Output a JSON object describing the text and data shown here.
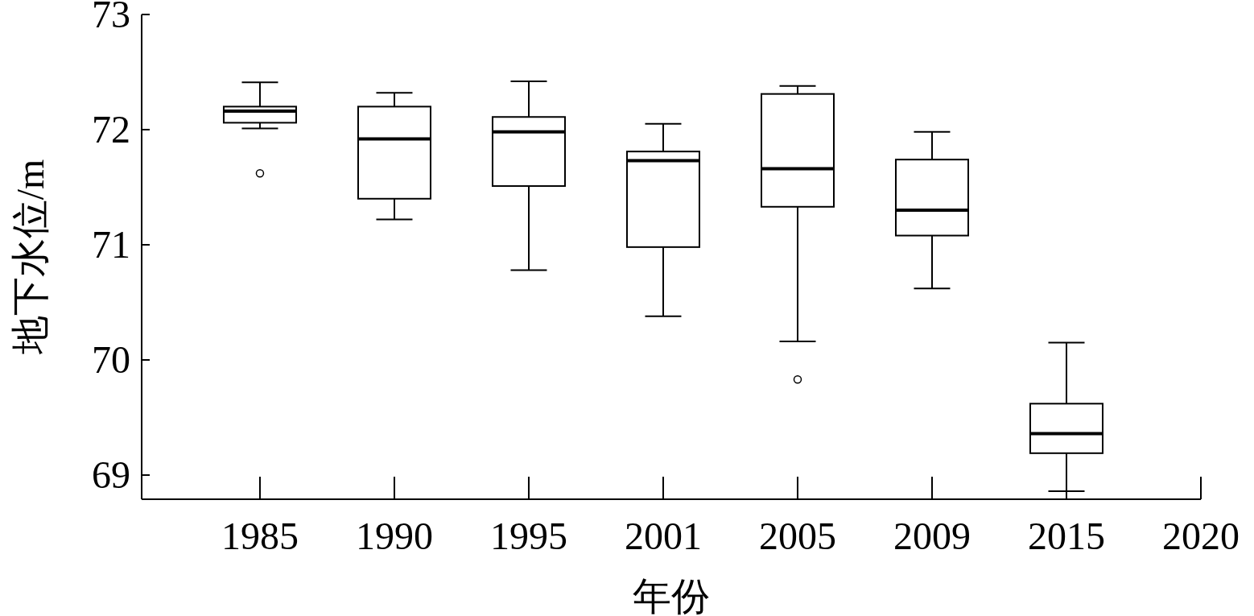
{
  "chart_data": {
    "type": "box",
    "xlabel": "年份",
    "ylabel": "地下水位/m",
    "categories": [
      "1985",
      "1990",
      "1995",
      "2001",
      "2005",
      "2009",
      "2015",
      "2020"
    ],
    "boxes": [
      {
        "low": 72.01,
        "q1": 72.06,
        "median": 72.16,
        "q3": 72.2,
        "high": 72.41,
        "outliers": [
          71.62
        ]
      },
      {
        "low": 71.22,
        "q1": 71.4,
        "median": 71.92,
        "q3": 72.2,
        "high": 72.32
      },
      {
        "low": 70.78,
        "q1": 71.51,
        "median": 71.98,
        "q3": 72.11,
        "high": 72.42
      },
      {
        "low": 70.38,
        "q1": 70.98,
        "median": 71.73,
        "q3": 71.81,
        "high": 72.05
      },
      {
        "low": 70.16,
        "q1": 71.33,
        "median": 71.66,
        "q3": 72.31,
        "high": 72.38,
        "outliers": [
          69.83
        ]
      },
      {
        "low": 70.62,
        "q1": 71.08,
        "median": 71.3,
        "q3": 71.74,
        "high": 71.98
      },
      {
        "low": 68.86,
        "q1": 69.19,
        "median": 69.36,
        "q3": 69.62,
        "high": 70.15
      },
      null
    ],
    "ylim": [
      68.79,
      73
    ],
    "yticks": [
      69,
      70,
      71,
      72,
      73
    ]
  }
}
